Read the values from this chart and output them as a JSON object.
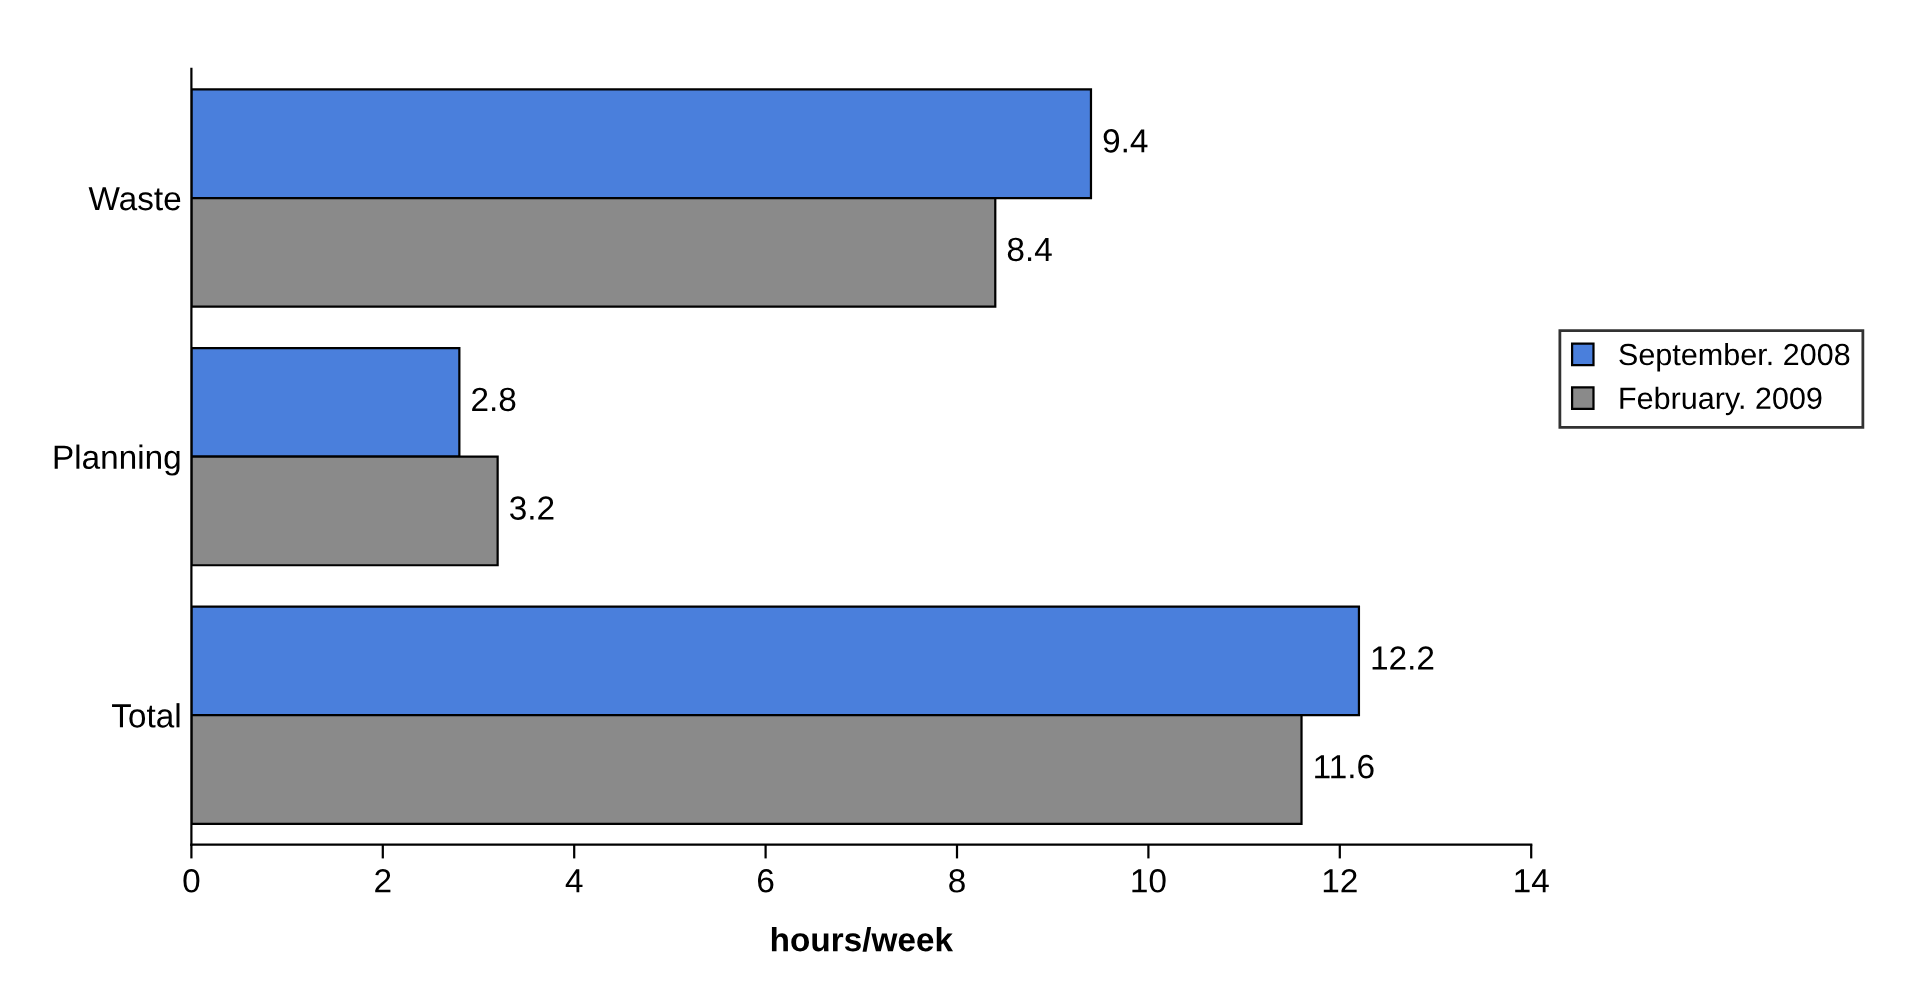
{
  "chart_data": {
    "type": "bar",
    "orientation": "horizontal",
    "xlabel": "hours/week",
    "categories": [
      "Waste",
      "Planning",
      "Total"
    ],
    "series": [
      {
        "name": "September. 2008",
        "color": "#4a7fdc",
        "values": [
          9.4,
          2.8,
          12.2
        ]
      },
      {
        "name": "February. 2009",
        "color": "#8a8a8a",
        "values": [
          8.4,
          3.2,
          11.6
        ]
      }
    ],
    "xlim": [
      0,
      14
    ],
    "xticks": [
      0,
      2,
      4,
      6,
      8,
      10,
      12,
      14
    ],
    "grid": false,
    "legend": "right",
    "data_labels": true
  }
}
